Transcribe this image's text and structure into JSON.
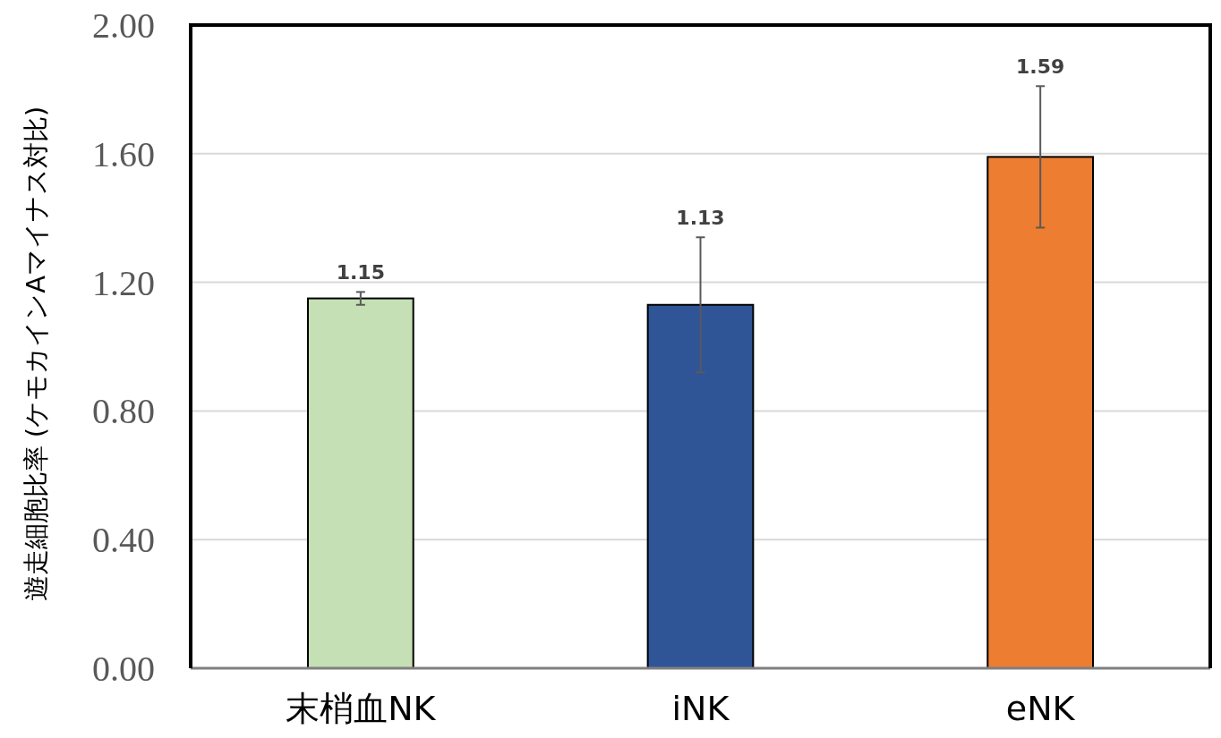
{
  "chart_data": {
    "type": "bar",
    "ylabel": "遊走細胞比率 (ケモカインAマイナス対比)",
    "categories": [
      "末梢血NK",
      "iNK",
      "eNK"
    ],
    "values": [
      1.15,
      1.13,
      1.59
    ],
    "colors": [
      "#c5e0b4",
      "#2f5597",
      "#ed7d31"
    ],
    "errors": [
      0.02,
      0.21,
      0.22
    ],
    "annotations": [
      {
        "text": "1.15",
        "x": "末梢血NK",
        "y": 1.17
      },
      {
        "text": "1.13",
        "x": "iNK",
        "y": 1.34
      },
      {
        "text": "1.59",
        "x": "eNK",
        "y": 1.81
      }
    ],
    "ylim": [
      0,
      2
    ],
    "yticks": [
      {
        "value": 0,
        "label": "0.00"
      },
      {
        "value": 0.4,
        "label": "0.40"
      },
      {
        "value": 0.8,
        "label": "0.80"
      },
      {
        "value": 1.2,
        "label": "1.20"
      },
      {
        "value": 1.6,
        "label": "1.60"
      },
      {
        "value": 2,
        "label": "2.00"
      }
    ],
    "grid": "y"
  }
}
